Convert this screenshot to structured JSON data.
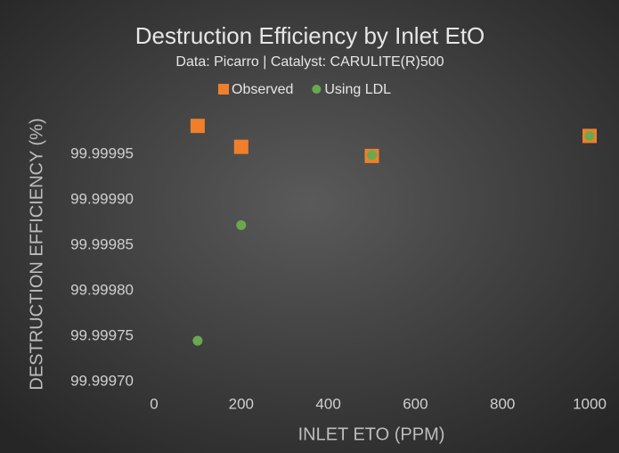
{
  "chart_data": {
    "type": "scatter",
    "title": "Destruction Efficiency by Inlet EtO",
    "subtitle": "Data: Picarro | Catalyst: CARULITE(R)500",
    "x_label": "INLET ETO (PPM)",
    "y_label": "DESTRUCTION EFFICIENCY (%)",
    "series": [
      {
        "name": "Observed",
        "color": "#f07f2a",
        "marker": "square",
        "x": [
          100,
          200,
          500,
          1000
        ],
        "values": [
          99.999981,
          99.999958,
          99.999948,
          99.99997
        ]
      },
      {
        "name": "Using LDL",
        "color": "#6aa84f",
        "marker": "circle",
        "x": [
          100,
          200,
          500,
          1000
        ],
        "values": [
          99.999745,
          99.999872,
          99.999949,
          99.99997
        ]
      }
    ],
    "xlim": [
      0,
      1000
    ],
    "xticks": [
      0,
      200,
      400,
      600,
      800,
      1000
    ],
    "ylim": [
      99.9997,
      99.99999
    ],
    "yticks": [
      {
        "value": 99.9997,
        "label": "99.99970"
      },
      {
        "value": 99.99975,
        "label": "99.99975"
      },
      {
        "value": 99.9998,
        "label": "99.99980"
      },
      {
        "value": 99.99985,
        "label": "99.99985"
      },
      {
        "value": 99.9999,
        "label": "99.99990"
      },
      {
        "value": 99.99995,
        "label": "99.99995"
      }
    ],
    "grid": false,
    "legend": "top"
  }
}
